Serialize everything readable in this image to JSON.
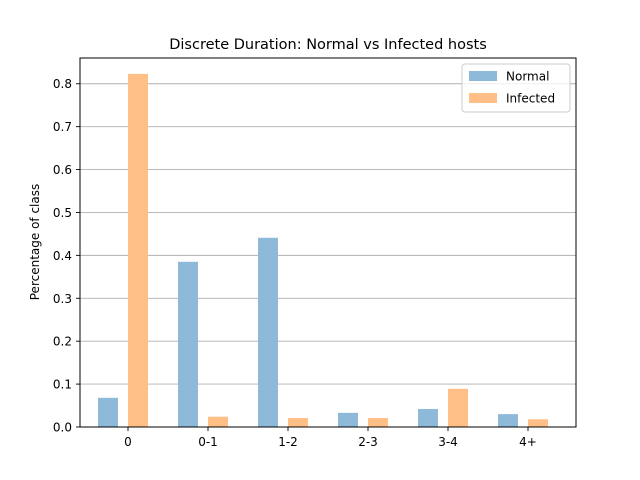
{
  "chart_data": {
    "type": "bar",
    "title": "Discrete Duration: Normal vs Infected hosts",
    "xlabel": "",
    "ylabel": "Percentage of class",
    "categories": [
      "0",
      "0-1",
      "1-2",
      "2-3",
      "3-4",
      "4+"
    ],
    "ylim": [
      0,
      0.86
    ],
    "yticks": [
      "0.0",
      "0.1",
      "0.2",
      "0.3",
      "0.4",
      "0.5",
      "0.6",
      "0.7",
      "0.8"
    ],
    "grid": "y",
    "legend_position": "top-right",
    "series": [
      {
        "name": "Normal",
        "color": "#8ebad9",
        "values": [
          0.068,
          0.385,
          0.441,
          0.033,
          0.042,
          0.03
        ]
      },
      {
        "name": "Infected",
        "color": "#ffbf86",
        "values": [
          0.823,
          0.024,
          0.021,
          0.021,
          0.089,
          0.018
        ]
      }
    ]
  }
}
